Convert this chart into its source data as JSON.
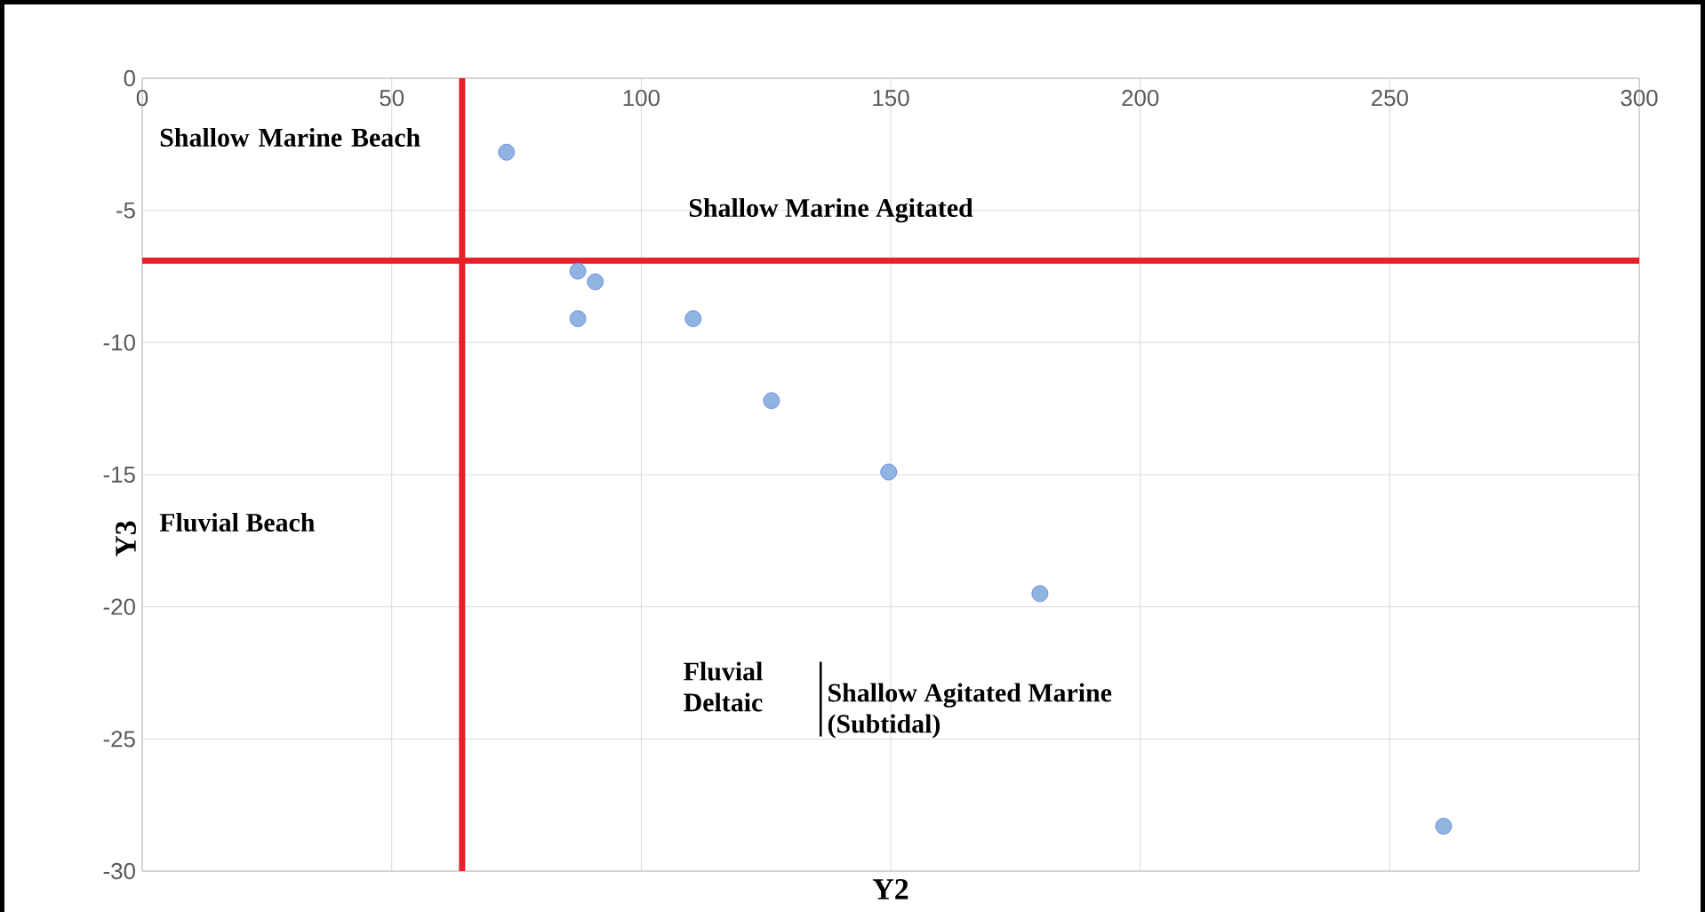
{
  "chart_data": {
    "type": "scatter",
    "xlabel": "Y2",
    "ylabel": "Y3",
    "x": [
      73.0,
      87.3,
      90.8,
      87.3,
      110.4,
      126.1,
      149.6,
      179.9,
      260.8
    ],
    "values": [
      -2.8,
      -7.3,
      -7.7,
      -9.1,
      -9.1,
      -12.2,
      -14.9,
      -19.5,
      -28.3
    ],
    "color": "#8fb4e0",
    "grid": true,
    "xlim": [
      0,
      300
    ],
    "xticks": [
      0,
      50,
      100,
      150,
      200,
      250,
      300
    ],
    "ylim": [
      -30,
      0
    ],
    "yticks": [
      -30,
      -25,
      -20,
      -15,
      -10,
      -5,
      0
    ],
    "ref_lines": [
      {
        "axis": "x",
        "value": 64.1,
        "color": "#e8202a"
      },
      {
        "axis": "y",
        "value": -6.9,
        "color": "#e8202a"
      }
    ],
    "annotations": [
      "Shallow Marine Beach",
      "Shallow Marine Agitated",
      "Fluvial Beach",
      "Fluvial Deltaic",
      "Shallow Agitated Marine (Subtidal)"
    ]
  }
}
